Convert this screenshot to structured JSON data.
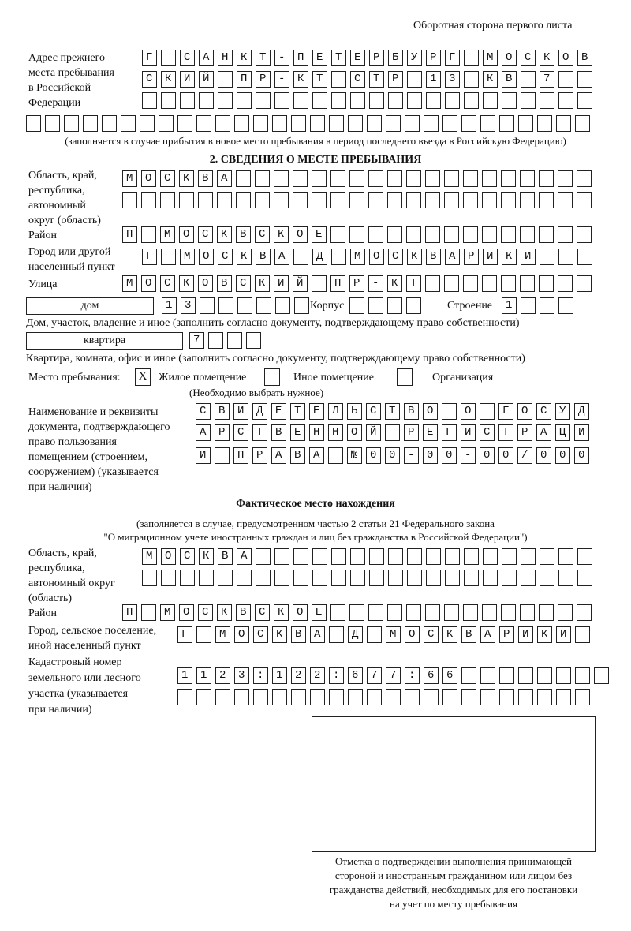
{
  "header": "Оборотная сторона первого листа",
  "prev_address": {
    "label": [
      "Адрес прежнего",
      "места пребывания",
      "в Российской",
      "Федерации"
    ],
    "rows": [
      "Г САНКТ-ПЕТЕРБУРГ МОСКОВ",
      "СКИЙ ПР-КТ СТР 13 КВ 7  ",
      "                        ",
      "                              "
    ],
    "note": "(заполняется в случае прибытия в новое место пребывания в период последнего въезда в Российскую Федерацию)"
  },
  "section2": {
    "title": "2. СВЕДЕНИЯ О МЕСТЕ ПРЕБЫВАНИЯ",
    "region_label": [
      "Область, край,",
      "республика,",
      "автономный",
      "округ (область)"
    ],
    "region_rows": [
      "МОСКВА                   ",
      "                         "
    ],
    "district_label": "Район",
    "district_row": "П МОСКВСКОЕ              ",
    "city_label": [
      "Город или другой",
      "населенный пункт"
    ],
    "city_row": "Г МОСКВА Д МОСКВАРИКИ   ",
    "street_label": "Улица",
    "street_row": "МОСКОВСКИЙ ПР-КТ         ",
    "house_type": "дом",
    "house_cells": "13      ",
    "korpus_label": "Корпус",
    "korpus_cells": "    ",
    "building_label": "Строение",
    "building_cells": "1   ",
    "house_caption": "Дом, участок, владение и иное (заполнить согласно документу, подтверждающему право собственности)",
    "flat_type": "квартира",
    "flat_cells": "7   ",
    "flat_caption": "Квартира, комната, офис и иное (заполнить согласно документу, подтверждающему право собственности)",
    "place_label": "Место пребывания:",
    "options": [
      {
        "label": "Жилое помещение",
        "mark": "X"
      },
      {
        "label": "Иное помещение",
        "mark": ""
      },
      {
        "label": "Организация",
        "mark": ""
      }
    ],
    "options_note": "(Необходимо выбрать нужное)",
    "doc_label": [
      "Наименование и реквизиты",
      "документа, подтверждающего",
      "право пользования",
      "помещением (строением,",
      "сооружением) (указывается",
      "при наличии)"
    ],
    "doc_rows": [
      "СВИДЕТЕЛЬСТВО О ГОСУД",
      "АРСТВЕННОЙ РЕГИСТРАЦИ",
      "И ПРАВА №00-00-00/000"
    ]
  },
  "actual": {
    "title": "Фактическое место нахождения",
    "note": [
      "(заполняется в случае, предусмотренном частью 2 статьи 21 Федерального закона",
      "\"О миграционном учете иностранных граждан и лиц без гражданства в Российской Федерации\")"
    ],
    "region_label": [
      "Область, край,",
      "республика,",
      "автономный округ",
      "(область)"
    ],
    "region_rows": [
      "МОСКВА                  ",
      "                        "
    ],
    "district_label": "Район",
    "district_row": "П МОСКВСКОЕ              ",
    "city_label": [
      "Город, сельское поселение,",
      "иной населенный пункт"
    ],
    "city_row": "Г МОСКВА Д МОСКВАРИКИ ",
    "cadastre_label": [
      "Кадастровый номер",
      "земельного или лесного",
      "участка (указывается",
      "при наличии)"
    ],
    "cadastre_rows": [
      "1123:122:677:66        ",
      "                      "
    ]
  },
  "stamp_caption": [
    "Отметка о подтверждении выполнения принимающей",
    "стороной и иностранным гражданином или лицом без",
    "гражданства действий, необходимых для его постановки",
    "на учет по месту пребывания"
  ]
}
